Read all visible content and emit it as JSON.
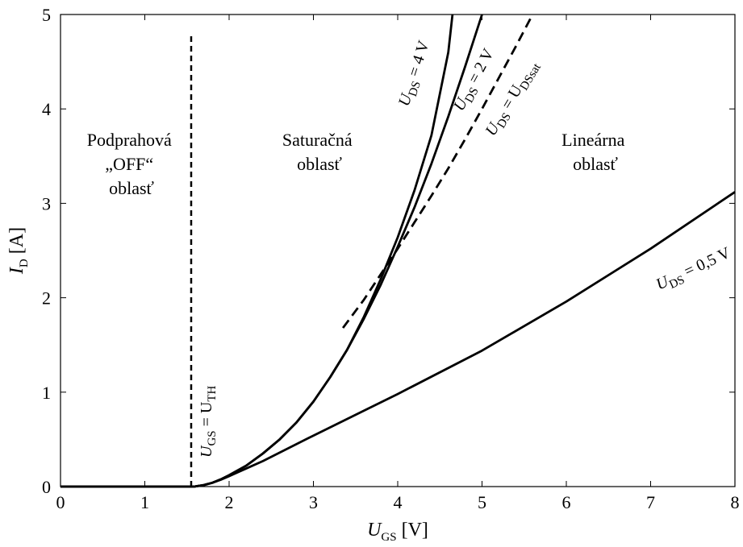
{
  "chart_data": {
    "type": "line",
    "title": "",
    "xlabel": {
      "main": "U",
      "sub": "GS",
      "unit": " [V]"
    },
    "ylabel": {
      "main": "I",
      "sub": "D",
      "unit": " [A]"
    },
    "xlim": [
      0,
      8
    ],
    "ylim": [
      0,
      5
    ],
    "xticks": [
      0,
      1,
      2,
      3,
      4,
      5,
      6,
      7,
      8
    ],
    "yticks": [
      0,
      1,
      2,
      3,
      4,
      5
    ],
    "grid": false,
    "legend": "none",
    "threshold_voltage": 1.55,
    "series": [
      {
        "key": "uds4",
        "label": {
          "main": "U",
          "sub": "DS",
          "rest": " = 4 V"
        },
        "style": "solid",
        "x": [
          0,
          1.55,
          1.6,
          1.7,
          1.8,
          1.9,
          2.0,
          2.2,
          2.4,
          2.6,
          2.8,
          3.0,
          3.2,
          3.4,
          3.6,
          3.8,
          4.0,
          4.2,
          4.4,
          4.6,
          4.65
        ],
        "y": [
          0,
          0,
          0.002,
          0.016,
          0.04,
          0.076,
          0.12,
          0.22,
          0.35,
          0.5,
          0.68,
          0.9,
          1.16,
          1.45,
          1.8,
          2.2,
          2.64,
          3.14,
          3.72,
          4.6,
          5.0
        ]
      },
      {
        "key": "uds2",
        "label": {
          "main": "U",
          "sub": "DS",
          "rest": " = 2 V"
        },
        "style": "solid",
        "x": [
          0,
          1.55,
          1.6,
          1.7,
          1.8,
          1.9,
          2.0,
          2.2,
          2.4,
          2.6,
          2.8,
          3.0,
          3.2,
          3.4,
          3.6,
          3.8,
          4.0,
          4.2,
          4.4,
          4.6,
          4.8,
          5.0
        ],
        "y": [
          0,
          0,
          0.002,
          0.016,
          0.04,
          0.076,
          0.12,
          0.22,
          0.35,
          0.5,
          0.68,
          0.9,
          1.16,
          1.45,
          1.78,
          2.14,
          2.54,
          2.96,
          3.42,
          3.92,
          4.45,
          5.0
        ]
      },
      {
        "key": "udssat",
        "label": {
          "main": "U",
          "sub": "DS",
          "rest": " = U",
          "sub2": "DSsat"
        },
        "style": "dashed",
        "x": [
          3.35,
          3.6,
          3.8,
          4.0,
          4.2,
          4.4,
          4.6,
          4.8,
          5.0,
          5.2,
          5.4,
          5.6
        ],
        "y": [
          1.68,
          1.98,
          2.25,
          2.52,
          2.8,
          3.08,
          3.37,
          3.68,
          4.0,
          4.33,
          4.66,
          5.0
        ]
      },
      {
        "key": "uds05",
        "label": {
          "main": "U",
          "sub": "DS",
          "rest": " = 0,5 V"
        },
        "style": "solid",
        "x": [
          0,
          1.55,
          1.6,
          1.7,
          1.8,
          1.9,
          2.0,
          2.1,
          2.2,
          2.4,
          3.0,
          4.0,
          5.0,
          6.0,
          7.0,
          8.0
        ],
        "y": [
          0,
          0,
          0.002,
          0.016,
          0.04,
          0.072,
          0.11,
          0.15,
          0.19,
          0.27,
          0.54,
          0.98,
          1.44,
          1.96,
          2.52,
          3.12
        ]
      }
    ],
    "annotations": {
      "threshold": {
        "main": "U",
        "sub": "GS",
        "rest": " = U",
        "sub2": "TH"
      },
      "region_off": [
        "Podprahová",
        "„OFF“",
        "oblasť"
      ],
      "region_sat": [
        "Saturačná",
        "oblasť"
      ],
      "region_lin": [
        "Lineárna",
        "oblasť"
      ]
    }
  }
}
